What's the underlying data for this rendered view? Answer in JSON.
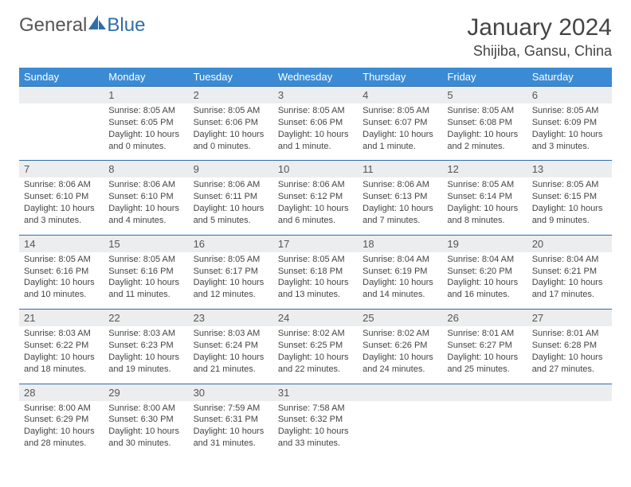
{
  "logo": {
    "text1": "General",
    "text2": "Blue",
    "accent": "#2f6ea8"
  },
  "title": "January 2024",
  "location": "Shijiba, Gansu, China",
  "colors": {
    "headerRow": "#3b8bd4",
    "headerText": "#ffffff",
    "numRowBg": "#ecedee",
    "numRowBorder": "#2f6ea8"
  },
  "dow": [
    "Sunday",
    "Monday",
    "Tuesday",
    "Wednesday",
    "Thursday",
    "Friday",
    "Saturday"
  ],
  "weeks": [
    {
      "nums": [
        "",
        "1",
        "2",
        "3",
        "4",
        "5",
        "6"
      ],
      "cells": [
        null,
        {
          "sun": "Sunrise: 8:05 AM",
          "set": "Sunset: 6:05 PM",
          "dl1": "Daylight: 10 hours",
          "dl2": "and 0 minutes."
        },
        {
          "sun": "Sunrise: 8:05 AM",
          "set": "Sunset: 6:06 PM",
          "dl1": "Daylight: 10 hours",
          "dl2": "and 0 minutes."
        },
        {
          "sun": "Sunrise: 8:05 AM",
          "set": "Sunset: 6:06 PM",
          "dl1": "Daylight: 10 hours",
          "dl2": "and 1 minute."
        },
        {
          "sun": "Sunrise: 8:05 AM",
          "set": "Sunset: 6:07 PM",
          "dl1": "Daylight: 10 hours",
          "dl2": "and 1 minute."
        },
        {
          "sun": "Sunrise: 8:05 AM",
          "set": "Sunset: 6:08 PM",
          "dl1": "Daylight: 10 hours",
          "dl2": "and 2 minutes."
        },
        {
          "sun": "Sunrise: 8:05 AM",
          "set": "Sunset: 6:09 PM",
          "dl1": "Daylight: 10 hours",
          "dl2": "and 3 minutes."
        }
      ]
    },
    {
      "nums": [
        "7",
        "8",
        "9",
        "10",
        "11",
        "12",
        "13"
      ],
      "cells": [
        {
          "sun": "Sunrise: 8:06 AM",
          "set": "Sunset: 6:10 PM",
          "dl1": "Daylight: 10 hours",
          "dl2": "and 3 minutes."
        },
        {
          "sun": "Sunrise: 8:06 AM",
          "set": "Sunset: 6:10 PM",
          "dl1": "Daylight: 10 hours",
          "dl2": "and 4 minutes."
        },
        {
          "sun": "Sunrise: 8:06 AM",
          "set": "Sunset: 6:11 PM",
          "dl1": "Daylight: 10 hours",
          "dl2": "and 5 minutes."
        },
        {
          "sun": "Sunrise: 8:06 AM",
          "set": "Sunset: 6:12 PM",
          "dl1": "Daylight: 10 hours",
          "dl2": "and 6 minutes."
        },
        {
          "sun": "Sunrise: 8:06 AM",
          "set": "Sunset: 6:13 PM",
          "dl1": "Daylight: 10 hours",
          "dl2": "and 7 minutes."
        },
        {
          "sun": "Sunrise: 8:05 AM",
          "set": "Sunset: 6:14 PM",
          "dl1": "Daylight: 10 hours",
          "dl2": "and 8 minutes."
        },
        {
          "sun": "Sunrise: 8:05 AM",
          "set": "Sunset: 6:15 PM",
          "dl1": "Daylight: 10 hours",
          "dl2": "and 9 minutes."
        }
      ]
    },
    {
      "nums": [
        "14",
        "15",
        "16",
        "17",
        "18",
        "19",
        "20"
      ],
      "cells": [
        {
          "sun": "Sunrise: 8:05 AM",
          "set": "Sunset: 6:16 PM",
          "dl1": "Daylight: 10 hours",
          "dl2": "and 10 minutes."
        },
        {
          "sun": "Sunrise: 8:05 AM",
          "set": "Sunset: 6:16 PM",
          "dl1": "Daylight: 10 hours",
          "dl2": "and 11 minutes."
        },
        {
          "sun": "Sunrise: 8:05 AM",
          "set": "Sunset: 6:17 PM",
          "dl1": "Daylight: 10 hours",
          "dl2": "and 12 minutes."
        },
        {
          "sun": "Sunrise: 8:05 AM",
          "set": "Sunset: 6:18 PM",
          "dl1": "Daylight: 10 hours",
          "dl2": "and 13 minutes."
        },
        {
          "sun": "Sunrise: 8:04 AM",
          "set": "Sunset: 6:19 PM",
          "dl1": "Daylight: 10 hours",
          "dl2": "and 14 minutes."
        },
        {
          "sun": "Sunrise: 8:04 AM",
          "set": "Sunset: 6:20 PM",
          "dl1": "Daylight: 10 hours",
          "dl2": "and 16 minutes."
        },
        {
          "sun": "Sunrise: 8:04 AM",
          "set": "Sunset: 6:21 PM",
          "dl1": "Daylight: 10 hours",
          "dl2": "and 17 minutes."
        }
      ]
    },
    {
      "nums": [
        "21",
        "22",
        "23",
        "24",
        "25",
        "26",
        "27"
      ],
      "cells": [
        {
          "sun": "Sunrise: 8:03 AM",
          "set": "Sunset: 6:22 PM",
          "dl1": "Daylight: 10 hours",
          "dl2": "and 18 minutes."
        },
        {
          "sun": "Sunrise: 8:03 AM",
          "set": "Sunset: 6:23 PM",
          "dl1": "Daylight: 10 hours",
          "dl2": "and 19 minutes."
        },
        {
          "sun": "Sunrise: 8:03 AM",
          "set": "Sunset: 6:24 PM",
          "dl1": "Daylight: 10 hours",
          "dl2": "and 21 minutes."
        },
        {
          "sun": "Sunrise: 8:02 AM",
          "set": "Sunset: 6:25 PM",
          "dl1": "Daylight: 10 hours",
          "dl2": "and 22 minutes."
        },
        {
          "sun": "Sunrise: 8:02 AM",
          "set": "Sunset: 6:26 PM",
          "dl1": "Daylight: 10 hours",
          "dl2": "and 24 minutes."
        },
        {
          "sun": "Sunrise: 8:01 AM",
          "set": "Sunset: 6:27 PM",
          "dl1": "Daylight: 10 hours",
          "dl2": "and 25 minutes."
        },
        {
          "sun": "Sunrise: 8:01 AM",
          "set": "Sunset: 6:28 PM",
          "dl1": "Daylight: 10 hours",
          "dl2": "and 27 minutes."
        }
      ]
    },
    {
      "nums": [
        "28",
        "29",
        "30",
        "31",
        "",
        "",
        ""
      ],
      "cells": [
        {
          "sun": "Sunrise: 8:00 AM",
          "set": "Sunset: 6:29 PM",
          "dl1": "Daylight: 10 hours",
          "dl2": "and 28 minutes."
        },
        {
          "sun": "Sunrise: 8:00 AM",
          "set": "Sunset: 6:30 PM",
          "dl1": "Daylight: 10 hours",
          "dl2": "and 30 minutes."
        },
        {
          "sun": "Sunrise: 7:59 AM",
          "set": "Sunset: 6:31 PM",
          "dl1": "Daylight: 10 hours",
          "dl2": "and 31 minutes."
        },
        {
          "sun": "Sunrise: 7:58 AM",
          "set": "Sunset: 6:32 PM",
          "dl1": "Daylight: 10 hours",
          "dl2": "and 33 minutes."
        },
        null,
        null,
        null
      ]
    }
  ]
}
